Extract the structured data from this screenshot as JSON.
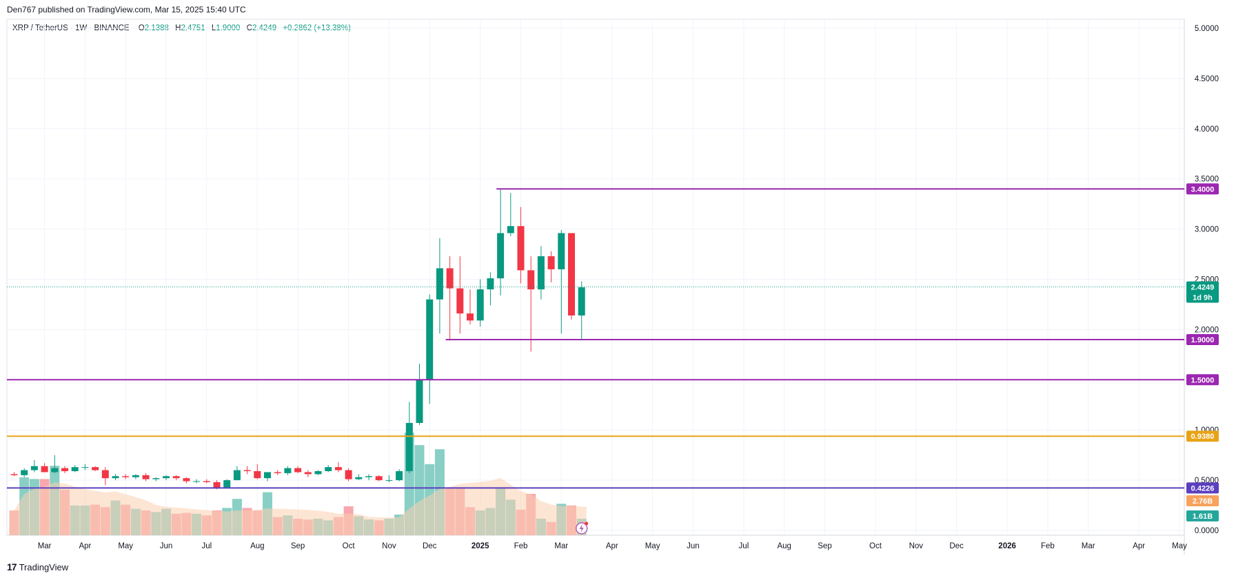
{
  "header": {
    "published": "Den767 published on TradingView.com, Mar 15, 2025 15:40 UTC"
  },
  "legend": {
    "symbol": "XRP / TetherUS · 1W · BINANCE",
    "open_label": "O",
    "open": "2.1388",
    "high_label": "H",
    "high": "2.4751",
    "low_label": "L",
    "low": "1.9000",
    "close_label": "C",
    "close": "2.4249",
    "change": "+0.2862 (+13.38%)"
  },
  "footer": {
    "brand": "TradingView",
    "logo": "17"
  },
  "colors": {
    "up": "#089981",
    "down": "#f23645",
    "level_purple": "#9c27b0",
    "level_orange": "#e8a317",
    "level_blue": "#5b3fbf",
    "vol_up": "#89cfc5",
    "vol_down": "#f7a7ad",
    "vol_ma": "#fbcfb1",
    "price_badge": "#089981",
    "vol_badge_orange": "#f7a25d",
    "vol_badge_green": "#26a69a"
  },
  "chart_data": {
    "type": "candlestick",
    "title": "XRP / TetherUS · 1W · BINANCE",
    "ylim": [
      0,
      5.1
    ],
    "y_ticks": [
      "5.0000",
      "4.5000",
      "4.0000",
      "3.5000",
      "3.0000",
      "2.5000",
      "2.0000",
      "1.0000",
      "0.5000",
      "0.0000"
    ],
    "y_tick_values": [
      5.0,
      4.5,
      4.0,
      3.5,
      3.0,
      2.5,
      2.0,
      1.0,
      0.5,
      0.0
    ],
    "x_axis_labels": [
      "Mar",
      "Apr",
      "May",
      "Jun",
      "Jul",
      "Aug",
      "Sep",
      "Oct",
      "Nov",
      "Dec",
      "2025",
      "Feb",
      "Mar",
      "Apr",
      "May",
      "Jun",
      "Jul",
      "Aug",
      "Sep",
      "Oct",
      "Nov",
      "Dec",
      "2026",
      "Feb",
      "Mar",
      "Apr",
      "May"
    ],
    "x_axis_bold": [
      false,
      false,
      false,
      false,
      false,
      false,
      false,
      false,
      false,
      false,
      true,
      false,
      false,
      false,
      false,
      false,
      false,
      false,
      false,
      false,
      false,
      false,
      true,
      false,
      false,
      false,
      false
    ],
    "x_axis_weeks": [
      3,
      7,
      11,
      15,
      19,
      24,
      28,
      33,
      37,
      41,
      46,
      50,
      54,
      59,
      63,
      67,
      72,
      76,
      80,
      85,
      89,
      93,
      98,
      102,
      106,
      111,
      115
    ],
    "candles": [
      [
        0.56,
        0.58,
        0.54,
        0.55,
        0.3
      ],
      [
        0.55,
        0.62,
        0.53,
        0.6,
        0.7
      ],
      [
        0.6,
        0.7,
        0.58,
        0.64,
        0.68
      ],
      [
        0.64,
        0.67,
        0.58,
        0.58,
        0.68
      ],
      [
        0.58,
        0.75,
        0.57,
        0.62,
        0.84
      ],
      [
        0.62,
        0.64,
        0.57,
        0.59,
        0.55
      ],
      [
        0.59,
        0.65,
        0.58,
        0.63,
        0.36
      ],
      [
        0.63,
        0.66,
        0.6,
        0.63,
        0.36
      ],
      [
        0.63,
        0.64,
        0.59,
        0.6,
        0.37
      ],
      [
        0.6,
        0.63,
        0.45,
        0.52,
        0.34
      ],
      [
        0.52,
        0.56,
        0.5,
        0.54,
        0.42
      ],
      [
        0.54,
        0.56,
        0.51,
        0.53,
        0.37
      ],
      [
        0.53,
        0.56,
        0.51,
        0.55,
        0.32
      ],
      [
        0.55,
        0.57,
        0.49,
        0.51,
        0.3
      ],
      [
        0.51,
        0.53,
        0.49,
        0.52,
        0.28
      ],
      [
        0.52,
        0.55,
        0.5,
        0.54,
        0.32
      ],
      [
        0.54,
        0.55,
        0.5,
        0.52,
        0.26
      ],
      [
        0.52,
        0.53,
        0.47,
        0.49,
        0.27
      ],
      [
        0.49,
        0.51,
        0.47,
        0.49,
        0.26
      ],
      [
        0.49,
        0.51,
        0.47,
        0.48,
        0.24
      ],
      [
        0.48,
        0.5,
        0.41,
        0.42,
        0.3
      ],
      [
        0.42,
        0.51,
        0.42,
        0.5,
        0.33
      ],
      [
        0.5,
        0.64,
        0.5,
        0.6,
        0.44
      ],
      [
        0.6,
        0.64,
        0.56,
        0.59,
        0.33
      ],
      [
        0.59,
        0.66,
        0.51,
        0.52,
        0.3
      ],
      [
        0.52,
        0.58,
        0.49,
        0.58,
        0.52
      ],
      [
        0.58,
        0.6,
        0.55,
        0.57,
        0.22
      ],
      [
        0.57,
        0.64,
        0.55,
        0.62,
        0.24
      ],
      [
        0.62,
        0.64,
        0.57,
        0.58,
        0.2
      ],
      [
        0.58,
        0.6,
        0.53,
        0.56,
        0.19
      ],
      [
        0.56,
        0.6,
        0.55,
        0.59,
        0.2
      ],
      [
        0.59,
        0.65,
        0.58,
        0.63,
        0.18
      ],
      [
        0.63,
        0.68,
        0.58,
        0.6,
        0.22
      ],
      [
        0.6,
        0.62,
        0.49,
        0.51,
        0.35
      ],
      [
        0.51,
        0.56,
        0.5,
        0.53,
        0.23
      ],
      [
        0.53,
        0.56,
        0.5,
        0.54,
        0.19
      ],
      [
        0.54,
        0.55,
        0.49,
        0.5,
        0.18
      ],
      [
        0.5,
        0.55,
        0.48,
        0.5,
        0.2
      ],
      [
        0.5,
        0.61,
        0.49,
        0.59,
        0.25
      ],
      [
        0.59,
        1.28,
        0.57,
        1.07,
        1.24
      ],
      [
        1.07,
        1.66,
        1.05,
        1.5,
        1.09
      ],
      [
        1.5,
        2.35,
        1.26,
        2.3,
        0.86
      ],
      [
        2.3,
        2.91,
        1.96,
        2.61,
        1.04
      ],
      [
        2.61,
        2.73,
        1.89,
        2.41,
        0.57
      ],
      [
        2.41,
        2.73,
        1.96,
        2.16,
        0.57
      ],
      [
        2.16,
        2.4,
        2.05,
        2.09,
        0.34
      ],
      [
        2.09,
        2.5,
        2.03,
        2.4,
        0.3
      ],
      [
        2.4,
        2.57,
        2.24,
        2.51,
        0.33
      ],
      [
        2.51,
        3.4,
        2.34,
        2.96,
        0.58
      ],
      [
        2.96,
        3.36,
        2.93,
        3.03,
        0.43
      ],
      [
        3.03,
        3.22,
        2.46,
        2.59,
        0.31
      ],
      [
        2.59,
        2.73,
        1.78,
        2.4,
        0.5
      ],
      [
        2.4,
        2.83,
        2.3,
        2.73,
        0.2
      ],
      [
        2.73,
        2.78,
        2.47,
        2.6,
        0.16
      ],
      [
        2.6,
        2.99,
        1.96,
        2.96,
        0.38
      ],
      [
        2.96,
        2.96,
        2.1,
        2.14,
        0.36
      ],
      [
        2.14,
        2.48,
        1.9,
        2.42,
        0.2
      ]
    ],
    "volume_units": "relative",
    "levels": [
      {
        "value": 3.4,
        "label": "3.4000",
        "color": "#9c27b0",
        "start_week": 48
      },
      {
        "value": 1.9,
        "label": "1.9000",
        "color": "#9c27b0",
        "start_week": 43
      },
      {
        "value": 1.5,
        "label": "1.5000",
        "color": "#9c27b0",
        "start_week": 0
      },
      {
        "value": 0.938,
        "label": "0.9380",
        "color": "#e8a317",
        "start_week": 0
      },
      {
        "value": 0.4226,
        "label": "0.4226",
        "color": "#5b3fbf",
        "start_week": 0
      }
    ],
    "last_price": {
      "value": 2.4249,
      "label": "2.4249",
      "countdown": "1d 9h"
    },
    "volume_badges": [
      {
        "label": "2.76B",
        "color": "#f7a25d"
      },
      {
        "label": "1.61B",
        "color": "#26a69a"
      }
    ]
  }
}
